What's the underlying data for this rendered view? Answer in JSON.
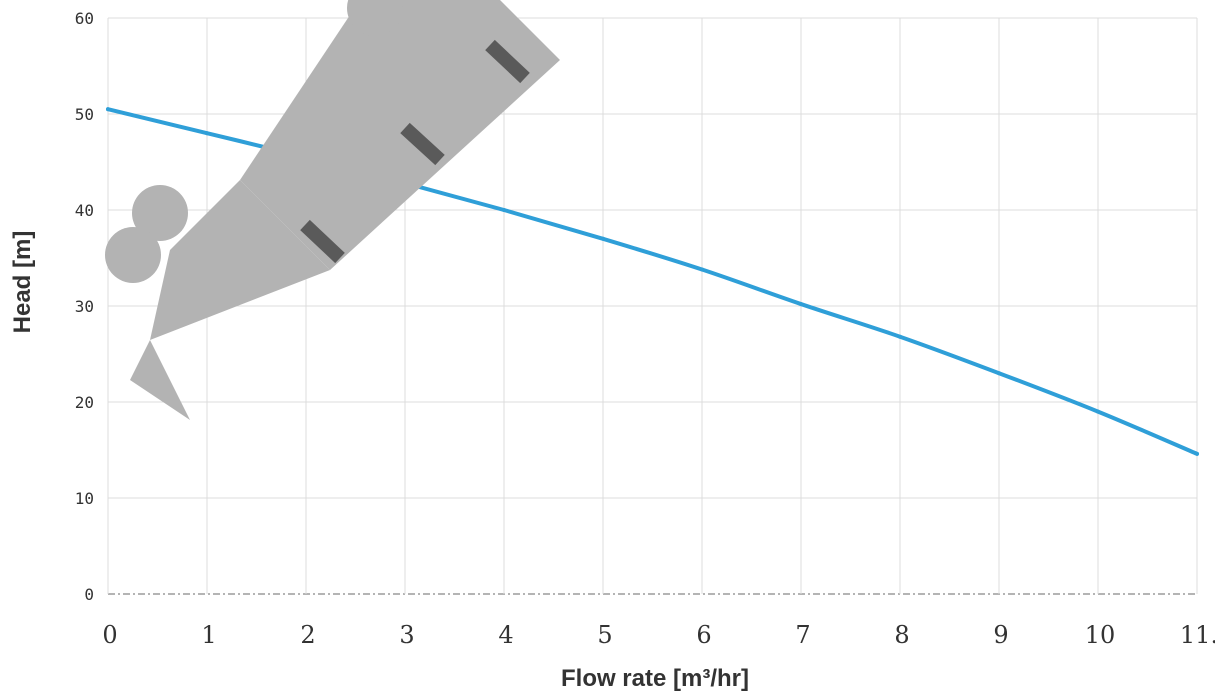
{
  "colors": {
    "series": "#2f9fd8",
    "watermark": "#b3b3b3"
  },
  "chart_data": {
    "type": "line",
    "xlabel": "Flow rate [m³/hr]",
    "ylabel": "Head [m]",
    "xlim": [
      0,
      11
    ],
    "ylim": [
      0,
      60
    ],
    "xticks": [
      "0",
      "1",
      "2",
      "3",
      "4",
      "5",
      "6",
      "7",
      "8",
      "9",
      "10",
      "11."
    ],
    "yticks": [
      "0",
      "10",
      "20",
      "30",
      "40",
      "50",
      "60"
    ],
    "grid": true,
    "series": [
      {
        "x": [
          0,
          1,
          2,
          3,
          4,
          5,
          6,
          7,
          8,
          9,
          10,
          11
        ],
        "values": [
          50.5,
          48.0,
          45.5,
          42.8,
          40.0,
          37.0,
          33.8,
          30.2,
          26.8,
          23.0,
          19.0,
          14.6
        ]
      }
    ]
  }
}
